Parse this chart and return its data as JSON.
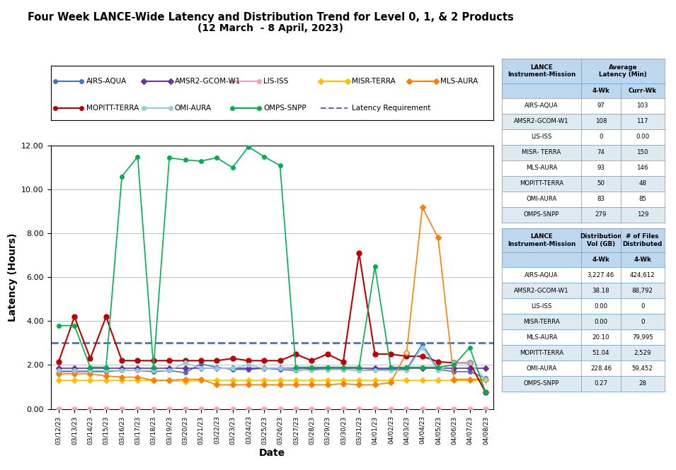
{
  "title_line1": "Four Week LANCE-Wide Latency and Distribution Trend for Level 0, 1, & 2 Products",
  "title_line2": "(12 March  - 8 April, 2023)",
  "xlabel": "Date",
  "ylabel": "Latency (Hours)",
  "ylim": [
    0.0,
    12.0
  ],
  "yticks": [
    0.0,
    2.0,
    4.0,
    6.0,
    8.0,
    10.0,
    12.0
  ],
  "latency_requirement": 3.0,
  "dates": [
    "03/12/23",
    "03/13/23",
    "03/14/23",
    "03/15/23",
    "03/16/23",
    "03/17/23",
    "03/18/23",
    "03/19/23",
    "03/20/23",
    "03/21/23",
    "03/22/23",
    "03/23/23",
    "03/24/23",
    "03/25/23",
    "03/26/23",
    "03/27/23",
    "03/28/23",
    "03/29/23",
    "03/30/23",
    "03/31/23",
    "04/01/23",
    "04/02/23",
    "04/03/23",
    "04/04/23",
    "04/05/23",
    "04/06/23",
    "04/07/23",
    "04/08/23"
  ],
  "series": {
    "AIRS-AQUA": {
      "color": "#4472C4",
      "marker": "o",
      "markersize": 4,
      "linewidth": 1.2,
      "values": [
        1.7,
        1.7,
        1.7,
        1.7,
        1.75,
        1.75,
        1.7,
        1.75,
        1.65,
        2.05,
        1.9,
        1.8,
        1.8,
        1.85,
        1.8,
        1.75,
        1.8,
        1.8,
        1.8,
        1.75,
        1.8,
        1.8,
        1.8,
        2.95,
        1.8,
        1.7,
        1.7,
        1.4
      ]
    },
    "AMSR2-GCOM-W1": {
      "color": "#7030A0",
      "marker": "D",
      "markersize": 4,
      "linewidth": 1.2,
      "values": [
        1.85,
        1.85,
        1.85,
        1.85,
        1.85,
        1.85,
        1.85,
        1.85,
        1.85,
        1.85,
        1.85,
        1.85,
        1.85,
        1.85,
        1.85,
        1.85,
        1.85,
        1.85,
        1.85,
        1.85,
        1.85,
        1.85,
        1.85,
        1.85,
        1.85,
        1.85,
        1.85,
        1.85
      ]
    },
    "LIS-ISS": {
      "color": "#FF99CC",
      "marker": "o",
      "markersize": 5,
      "linewidth": 1.0,
      "values": [
        0.0,
        0.0,
        0.0,
        0.0,
        0.0,
        0.0,
        0.0,
        0.0,
        0.0,
        0.0,
        0.0,
        0.0,
        0.0,
        0.0,
        0.0,
        0.0,
        0.0,
        0.0,
        0.0,
        0.0,
        0.0,
        0.0,
        0.0,
        0.0,
        0.0,
        0.0,
        0.0,
        0.0
      ]
    },
    "MISR-TERRA": {
      "color": "#FFC000",
      "marker": "D",
      "markersize": 4,
      "linewidth": 1.2,
      "values": [
        1.3,
        1.3,
        1.3,
        1.3,
        1.3,
        1.3,
        1.3,
        1.3,
        1.25,
        1.3,
        1.3,
        1.3,
        1.3,
        1.3,
        1.3,
        1.3,
        1.3,
        1.3,
        1.3,
        1.3,
        1.3,
        1.3,
        1.3,
        1.3,
        1.3,
        1.3,
        1.3,
        1.3
      ]
    },
    "MLS-AURA": {
      "color": "#FF8000",
      "marker": "D",
      "markersize": 4,
      "linewidth": 1.2,
      "values": [
        1.6,
        1.6,
        1.6,
        1.5,
        1.45,
        1.45,
        1.3,
        1.3,
        1.35,
        1.35,
        1.1,
        1.1,
        1.1,
        1.1,
        1.1,
        1.1,
        1.1,
        1.1,
        1.15,
        1.1,
        1.1,
        1.2,
        2.55,
        9.2,
        7.8,
        1.35,
        1.35,
        1.35
      ],
      "open_marker_idx": 22
    },
    "MOPITT-TERRA": {
      "color": "#C00000",
      "marker": "o",
      "markersize": 5,
      "linewidth": 1.5,
      "values": [
        2.15,
        4.2,
        2.3,
        4.2,
        2.2,
        2.2,
        2.2,
        2.2,
        2.2,
        2.2,
        2.2,
        2.3,
        2.2,
        2.2,
        2.2,
        2.5,
        2.2,
        2.5,
        2.15,
        7.1,
        2.5,
        2.5,
        2.4,
        2.4,
        2.15,
        2.1,
        2.1,
        0.75
      ]
    },
    "OMI-AURA": {
      "color": "#92CDDC",
      "marker": "o",
      "markersize": 4,
      "linewidth": 1.2,
      "values": [
        1.75,
        1.75,
        1.75,
        1.75,
        1.75,
        1.75,
        1.75,
        1.75,
        2.1,
        1.85,
        1.85,
        1.85,
        2.0,
        1.85,
        1.85,
        1.8,
        1.75,
        1.8,
        1.8,
        1.75,
        1.75,
        1.75,
        1.75,
        2.8,
        1.75,
        2.1,
        2.1,
        1.35
      ]
    },
    "OMPS-SNPP": {
      "color": "#00B050",
      "marker": "o",
      "markersize": 4,
      "linewidth": 1.2,
      "values": [
        3.8,
        3.8,
        1.9,
        1.9,
        10.6,
        11.5,
        1.9,
        11.45,
        11.35,
        11.3,
        11.45,
        11.0,
        11.95,
        11.5,
        11.1,
        1.9,
        1.9,
        1.9,
        1.9,
        1.9,
        6.5,
        1.9,
        1.9,
        1.9,
        1.9,
        2.0,
        2.8,
        0.75
      ]
    }
  },
  "series_order": [
    "AIRS-AQUA",
    "AMSR2-GCOM-W1",
    "LIS-ISS",
    "MISR-TERRA",
    "MLS-AURA",
    "MOPITT-TERRA",
    "OMI-AURA",
    "OMPS-SNPP"
  ],
  "table1_rows": [
    [
      "AIRS-AQUA",
      "97",
      "103"
    ],
    [
      "AMSR2-GCOM-W1",
      "108",
      "117"
    ],
    [
      "LIS-ISS",
      "0",
      "0.00"
    ],
    [
      "MISR- TERRA",
      "74",
      "150"
    ],
    [
      "MLS-AURA",
      "93",
      "146"
    ],
    [
      "MOPITT-TERRA",
      "50",
      "48"
    ],
    [
      "OMI-AURA",
      "83",
      "85"
    ],
    [
      "OMPS-SNPP",
      "279",
      "129"
    ]
  ],
  "table2_rows": [
    [
      "AIRS-AQUA",
      "3,227.46",
      "424,612"
    ],
    [
      "AMSR2-GCOM-W1",
      "38.18",
      "88,792"
    ],
    [
      "LIS-ISS",
      "0.00",
      "0"
    ],
    [
      "MISR-TERRA",
      "0.00",
      "0"
    ],
    [
      "MLS-AURA",
      "20.10",
      "79,995"
    ],
    [
      "MOPITT-TERRA",
      "51.04",
      "2,529"
    ],
    [
      "OMI-AURA",
      "228.46",
      "59,452"
    ],
    [
      "OMPS-SNPP",
      "0.27",
      "28"
    ]
  ],
  "legend_row1": [
    {
      "label": "AIRS-AQUA",
      "color": "#4472C4",
      "marker": "o",
      "ls": "-"
    },
    {
      "label": "AMSR2-GCOM-W1",
      "color": "#7030A0",
      "marker": "D",
      "ls": "-"
    },
    {
      "label": "LIS-ISS",
      "color": "#FF99CC",
      "marker": "o",
      "ls": "-"
    },
    {
      "label": "MISR-TERRA",
      "color": "#FFC000",
      "marker": "D",
      "ls": "-"
    },
    {
      "label": "MLS-AURA",
      "color": "#FF8000",
      "marker": "D",
      "ls": "-"
    }
  ],
  "legend_row2": [
    {
      "label": "MOPITT-TERRA",
      "color": "#C00000",
      "marker": "o",
      "ls": "-"
    },
    {
      "label": "OMI-AURA",
      "color": "#92CDDC",
      "marker": "o",
      "ls": "-"
    },
    {
      "label": "OMPS-SNPP",
      "color": "#00B050",
      "marker": "o",
      "ls": "-"
    },
    {
      "label": "Latency Requirement",
      "color": "#5B6FA6",
      "marker": "none",
      "ls": "--"
    }
  ],
  "header_bg": "#BDD7EE",
  "alt_row_bg": "#DEEAF1",
  "border_color": "#5B9BD5"
}
